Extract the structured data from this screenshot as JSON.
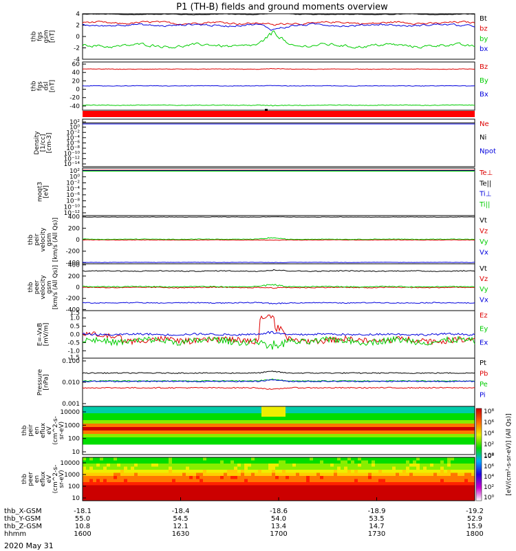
{
  "title": "P1 (TH-B) fields and ground moments overview",
  "date_label": "2020 May 31",
  "chart_data": [
    {
      "id": "fgs",
      "type": "line",
      "ylabel": [
        "thb",
        "fgs",
        "gsm",
        "[nT]"
      ],
      "ylim": [
        -4,
        4
      ],
      "yticks": [
        4,
        2,
        0,
        -2,
        -4
      ],
      "series": [
        {
          "name": "Bt",
          "color": "#000000",
          "base": 3.9,
          "noise": 0.12,
          "event": 0.4
        },
        {
          "name": "bz",
          "color": "#dd0000",
          "base": 2.4,
          "noise": 0.35,
          "event": 1.0
        },
        {
          "name": "by",
          "color": "#00cc00",
          "base": -1.6,
          "noise": 0.5,
          "event": 3.0
        },
        {
          "name": "bx",
          "color": "#0000dd",
          "base": 2.0,
          "noise": 0.35,
          "event": 1.5
        }
      ]
    },
    {
      "id": "fgs-dsl",
      "type": "line",
      "ylabel": [
        "thb",
        "fgs",
        "dsl",
        "[nT]"
      ],
      "ylim": [
        -50,
        65
      ],
      "yticks": [
        60,
        40,
        20,
        0,
        -20,
        -40
      ],
      "series": [
        {
          "name": "Bz",
          "color": "#dd0000",
          "base": 48,
          "noise": 0.6,
          "event": 1
        },
        {
          "name": "By",
          "color": "#00cc00",
          "base": -38,
          "noise": 0.8,
          "event": 2
        },
        {
          "name": "Bx",
          "color": "#0000dd",
          "base": 8,
          "noise": 0.6,
          "event": 1
        }
      ]
    },
    {
      "id": "density",
      "type": "line",
      "log": true,
      "ylabel": [
        "Density",
        "[1/cc]",
        "[cm-3]"
      ],
      "yticks_text": [
        "10²",
        "10⁰",
        "10⁻²",
        "10⁻⁴",
        "10⁻⁶",
        "10⁻⁸",
        "10⁻¹⁰",
        "10⁻¹²",
        "10⁻¹⁴"
      ],
      "series": [
        {
          "name": "Ne",
          "color": "#dd0000"
        },
        {
          "name": "Ni",
          "color": "#000000"
        },
        {
          "name": "Npot",
          "color": "#0000dd"
        }
      ]
    },
    {
      "id": "temp",
      "type": "line",
      "log": true,
      "ylabel": [
        "moqt3",
        "[eV]"
      ],
      "yticks_text": [
        "10²",
        "10⁰",
        "10⁻²",
        "10⁻⁴",
        "10⁻⁶",
        "10⁻⁸",
        "10⁻¹⁰",
        "10⁻¹²"
      ],
      "series": [
        {
          "name": "Te⊥",
          "color": "#dd0000"
        },
        {
          "name": "Te||",
          "color": "#000000"
        },
        {
          "name": "Ti⊥",
          "color": "#0000dd"
        },
        {
          "name": "Ti||",
          "color": "#00cc00"
        }
      ]
    },
    {
      "id": "peir-vel",
      "type": "line",
      "ylabel": [
        "thb",
        "peir",
        "velocity",
        "gsm",
        "[km/s (All Qs)]"
      ],
      "ylim": [
        -420,
        420
      ],
      "yticks": [
        400,
        200,
        0,
        -200,
        -400
      ],
      "series": [
        {
          "name": "Vt",
          "color": "#000000",
          "base": 395,
          "noise": 3,
          "event": 6
        },
        {
          "name": "Vz",
          "color": "#dd0000",
          "base": -5,
          "noise": 4,
          "event": 10
        },
        {
          "name": "Vy",
          "color": "#00cc00",
          "base": 8,
          "noise": 5,
          "event": 30
        },
        {
          "name": "Vx",
          "color": "#0000dd",
          "base": -395,
          "noise": 3,
          "event": 6
        }
      ]
    },
    {
      "id": "peer-vel",
      "type": "line",
      "ylabel": [
        "thb",
        "peer",
        "velocity",
        "gsm",
        "[km/s (All Qs)]"
      ],
      "ylim": [
        -420,
        420
      ],
      "yticks": [
        400,
        200,
        0,
        -200,
        -400
      ],
      "series": [
        {
          "name": "Vt",
          "color": "#000000",
          "base": 290,
          "noise": 8,
          "event": 25
        },
        {
          "name": "Vz",
          "color": "#dd0000",
          "base": -5,
          "noise": 8,
          "event": 20
        },
        {
          "name": "Vy",
          "color": "#00cc00",
          "base": 10,
          "noise": 8,
          "event": 40
        },
        {
          "name": "Vx",
          "color": "#0000dd",
          "base": -280,
          "noise": 8,
          "event": 25
        }
      ]
    },
    {
      "id": "efield",
      "type": "line",
      "ylabel": [
        "E=-VxB",
        "[mV/m]"
      ],
      "ylim": [
        -1.45,
        1.45
      ],
      "yticks": [
        1.0,
        0.5,
        0.0,
        -0.5,
        -1.0
      ],
      "yticks_text": [
        "1.0",
        "0.5",
        "0.0",
        "-0.5",
        "-1.0"
      ],
      "extra_ticks_text": [
        "1.5",
        "-1.5"
      ],
      "series": [
        {
          "name": "Ez",
          "color": "#dd0000",
          "base": -0.35,
          "noise": 0.18,
          "event": 1.4
        },
        {
          "name": "Ey",
          "color": "#00cc00",
          "base": -0.4,
          "noise": 0.2,
          "event": 0.9
        },
        {
          "name": "Ex",
          "color": "#0000dd",
          "base": 0.0,
          "noise": 0.06,
          "event": 0.15
        }
      ]
    },
    {
      "id": "pressure",
      "type": "line",
      "log": true,
      "ylabel": [
        "Pressure",
        "[nPa]"
      ],
      "yticks_text": [
        "0.100",
        "0.010",
        "0.001"
      ],
      "series": [
        {
          "name": "Pt",
          "color": "#000000",
          "base": 0.027
        },
        {
          "name": "Pb",
          "color": "#dd0000",
          "base": 0.0055
        },
        {
          "name": "Pe",
          "color": "#00cc00",
          "base": 0.0115
        },
        {
          "name": "Pi",
          "color": "#0000dd",
          "base": 0.011
        }
      ]
    },
    {
      "id": "peir-spec",
      "type": "heatmap",
      "ylabel": [
        "thb",
        "peir",
        "en",
        "eflux",
        "eV",
        "(cm^2-s-",
        "sr-eV)"
      ],
      "yticks_text": [
        "10000",
        "1000",
        "100",
        "10"
      ]
    },
    {
      "id": "peer-spec",
      "type": "heatmap",
      "ylabel": [
        "thb",
        "peer",
        "en",
        "eflux",
        "eV",
        "(cm^2-s-",
        "sr-eV)"
      ],
      "yticks_text": [
        "10000",
        "1000",
        "100",
        "10"
      ]
    }
  ],
  "colorbar": {
    "ticks_text": [
      "10⁸",
      "10⁶",
      "10⁴",
      "10²",
      "10⁰"
    ],
    "label": "[eV/(cm²-s-sr-eV)] (All Qs)]",
    "stops": [
      "#ffffff",
      "#cc00cc",
      "#2200dd",
      "#00aaff",
      "#00dd00",
      "#eeee00",
      "#ff6600",
      "#cc0000"
    ]
  },
  "x_axis": {
    "rows": [
      {
        "label": "thb_X-GSM",
        "values": [
          "-18.1",
          "-18.4",
          "-18.6",
          "-18.9",
          "-19.2"
        ]
      },
      {
        "label": "thb_Y-GSM",
        "values": [
          "55.0",
          "54.5",
          "54.0",
          "53.5",
          "52.9"
        ]
      },
      {
        "label": "thb_Z-GSM",
        "values": [
          "10.8",
          "12.1",
          "13.4",
          "14.7",
          "15.9"
        ]
      },
      {
        "label": "hhmm",
        "values": [
          "1600",
          "1630",
          "1700",
          "1730",
          "1800"
        ]
      }
    ]
  }
}
